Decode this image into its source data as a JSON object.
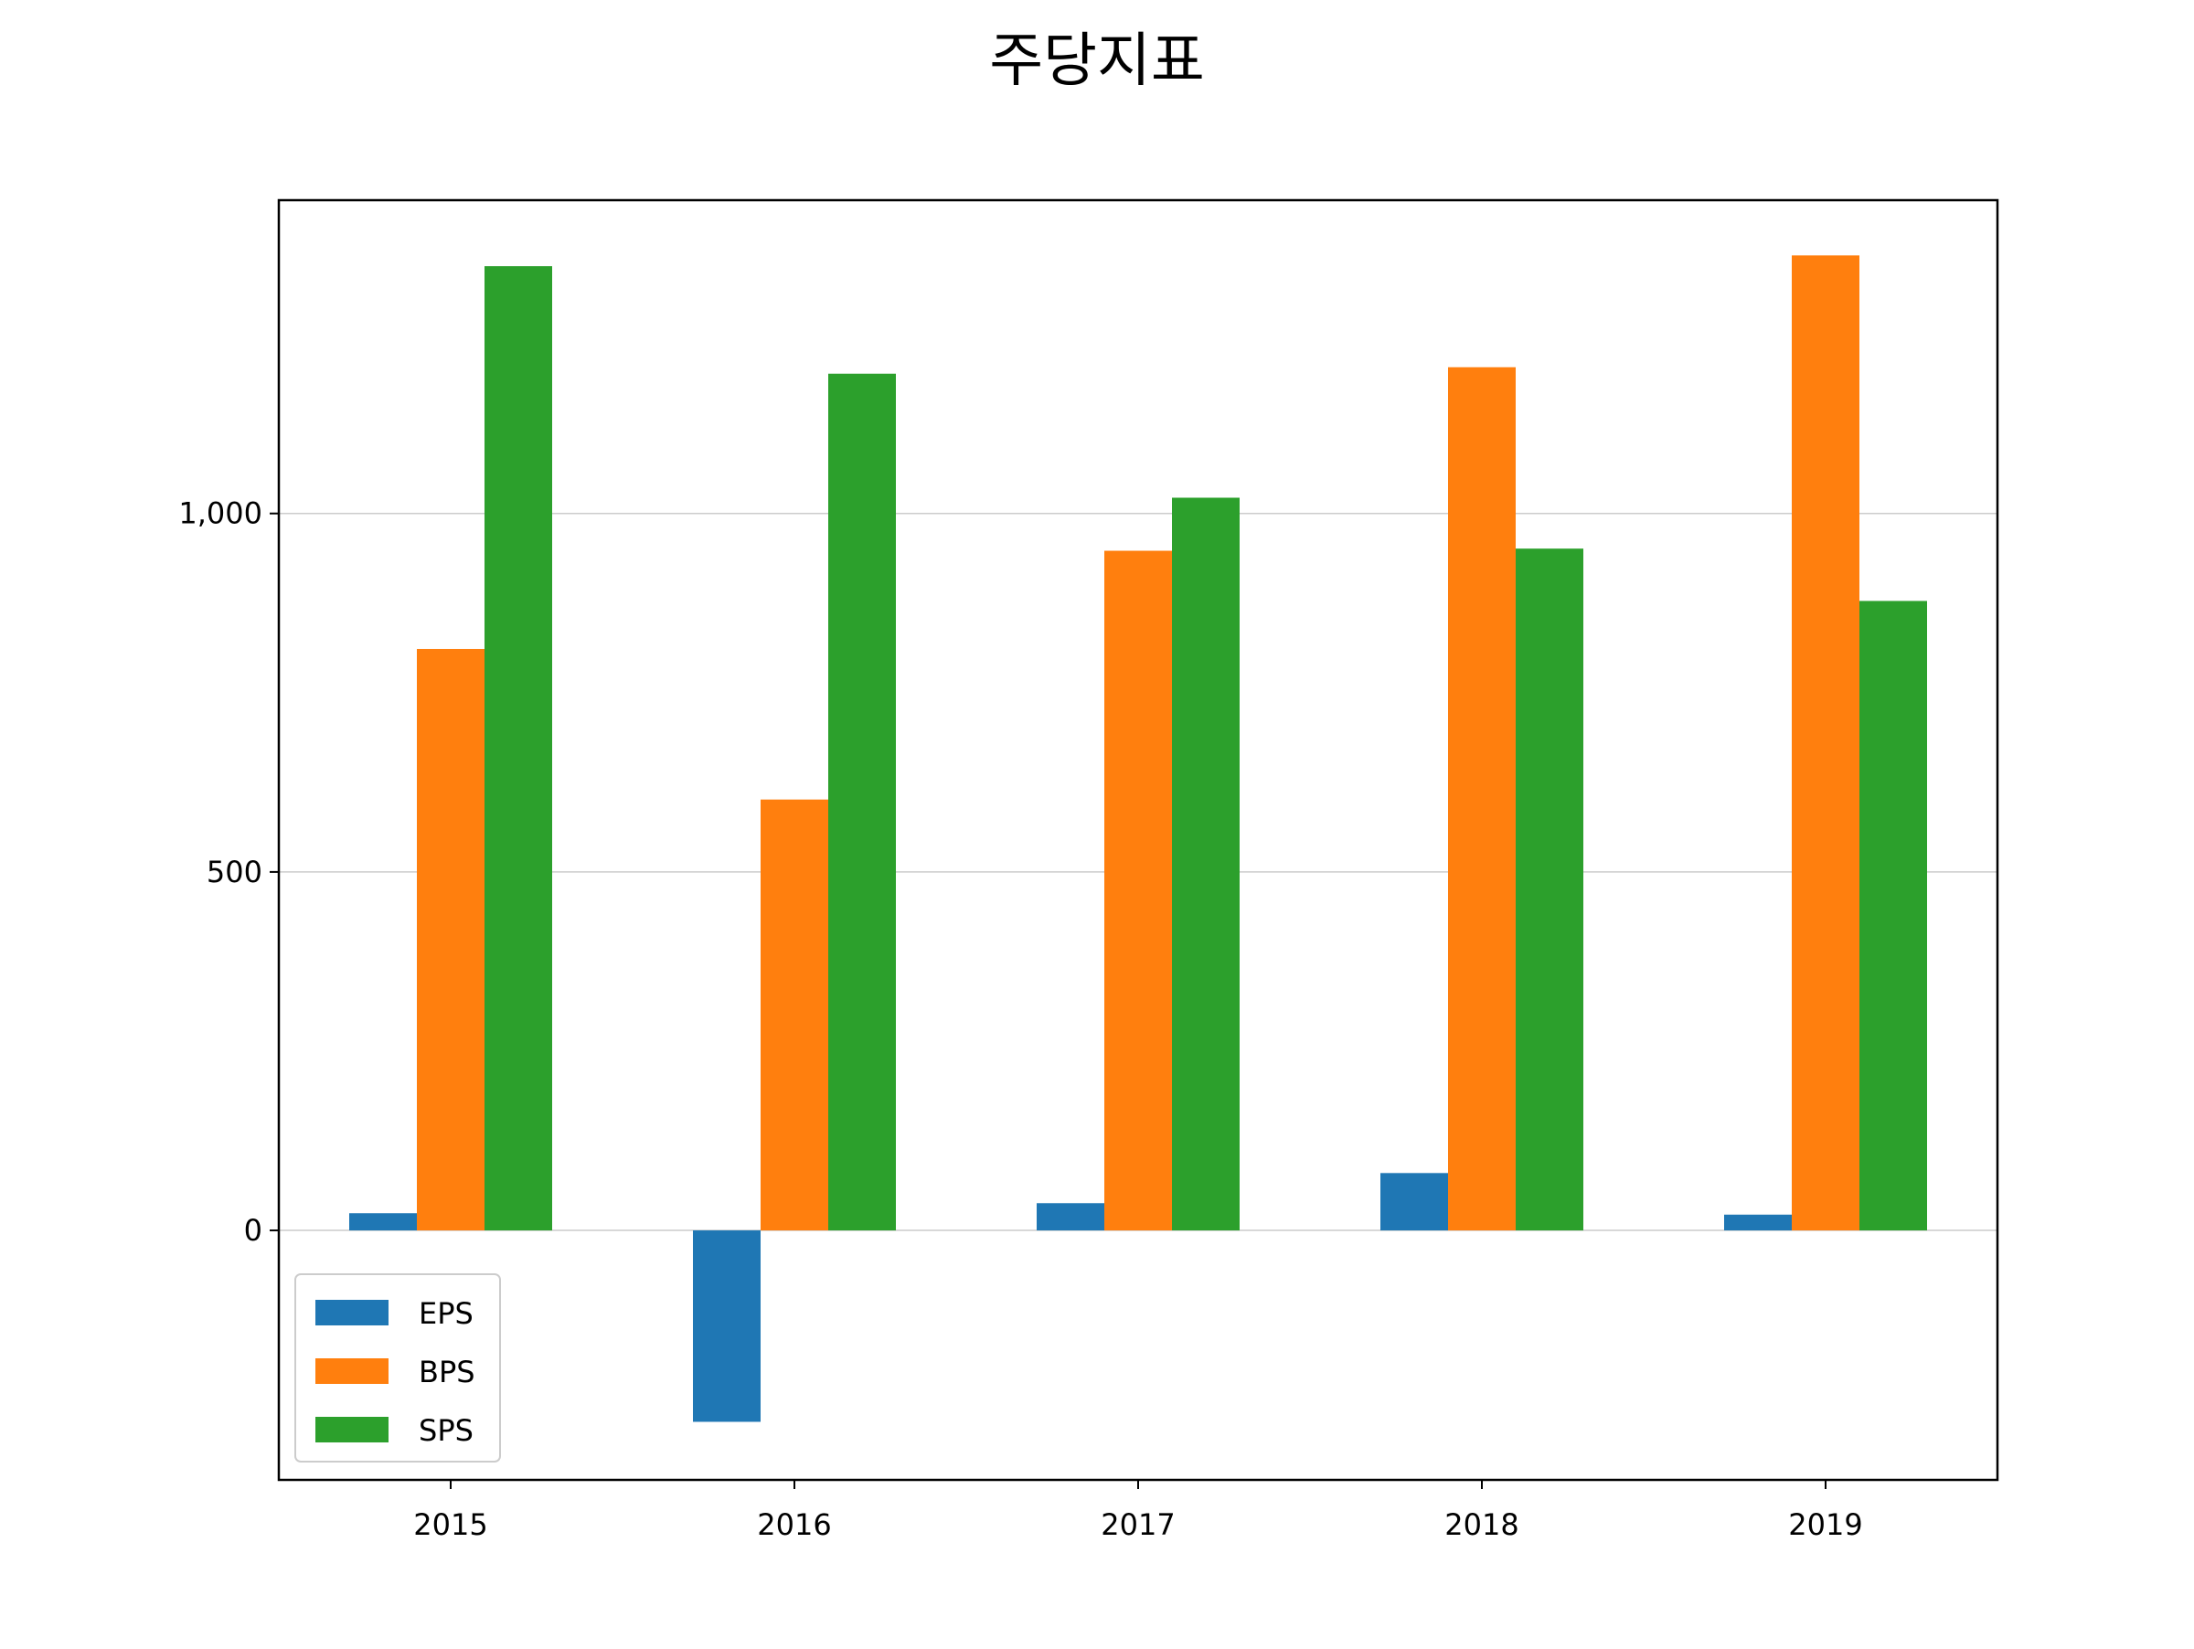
{
  "chart_data": {
    "type": "bar",
    "title": "주당지표",
    "xlabel": "",
    "ylabel": "",
    "categories": [
      "2015",
      "2016",
      "2017",
      "2018",
      "2019"
    ],
    "series": [
      {
        "name": "EPS",
        "color": "#1f77b4",
        "values": [
          24,
          -267,
          38,
          80,
          22
        ]
      },
      {
        "name": "BPS",
        "color": "#ff7f0e",
        "values": [
          811,
          601,
          948,
          1204,
          1360
        ]
      },
      {
        "name": "SPS",
        "color": "#2ca02c",
        "values": [
          1345,
          1195,
          1022,
          951,
          878
        ]
      }
    ],
    "ylim": [
      -348,
      1437
    ],
    "yticks": [
      0,
      500,
      1000
    ],
    "ytick_labels": [
      "0",
      "500",
      "1,000"
    ],
    "grid": "y",
    "legend_position": "lower-left"
  }
}
